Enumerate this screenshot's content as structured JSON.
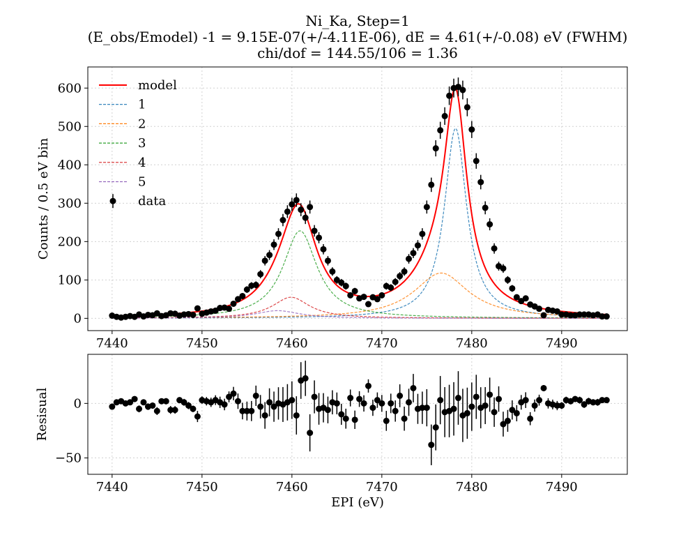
{
  "colors": {
    "model": "#ff0000",
    "c1": "#1f77b4",
    "c2": "#ff7f0e",
    "c3": "#2ca02c",
    "c4": "#d62728",
    "c5": "#9467bd",
    "data": "#000000",
    "grid": "#d0d0d0"
  },
  "chart_data": [
    {
      "type": "line",
      "role": "fit",
      "title_lines": [
        "Ni_Ka, Step=1",
        "(E_obs/Emodel) -1 = 9.15E-07(+/-4.11E-06), dE = 4.61(+/-0.08) eV (FWHM)",
        "chi/dof = 144.55/106 = 1.36"
      ],
      "xlabel": "",
      "ylabel": "Counts / 0.5 eV bin",
      "xlim": [
        7437.3,
        7497.3
      ],
      "ylim": [
        -32,
        655
      ],
      "xticks": [
        7440,
        7450,
        7460,
        7470,
        7480,
        7490
      ],
      "yticks": [
        0,
        100,
        200,
        300,
        400,
        500,
        600
      ],
      "legend_position": "top-left",
      "legend": [
        "model",
        "1",
        "2",
        "3",
        "4",
        "5",
        "data"
      ],
      "components": [
        {
          "name": "1",
          "shape": "lorentzian",
          "center": 7478.2,
          "amplitude": 495,
          "fwhm": 3.0
        },
        {
          "name": "2",
          "shape": "lorentzian",
          "center": 7476.6,
          "amplitude": 118,
          "fwhm": 7.4
        },
        {
          "name": "3",
          "shape": "lorentzian",
          "center": 7460.9,
          "amplitude": 228,
          "fwhm": 4.6
        },
        {
          "name": "4",
          "shape": "lorentzian",
          "center": 7459.9,
          "amplitude": 55,
          "fwhm": 5.0
        },
        {
          "name": "5",
          "shape": "lorentzian",
          "center": 7458.4,
          "amplitude": 20,
          "fwhm": 6.0
        }
      ],
      "data": {
        "x": [
          7440.0,
          7440.5,
          7441.0,
          7441.5,
          7442.0,
          7442.5,
          7443.0,
          7443.5,
          7444.0,
          7444.5,
          7445.0,
          7445.5,
          7446.0,
          7446.5,
          7447.0,
          7447.5,
          7448.0,
          7448.5,
          7449.0,
          7449.5,
          7450.0,
          7450.5,
          7451.0,
          7451.5,
          7452.0,
          7452.5,
          7453.0,
          7453.5,
          7454.0,
          7454.5,
          7455.0,
          7455.5,
          7456.0,
          7456.5,
          7457.0,
          7457.5,
          7458.0,
          7458.5,
          7459.0,
          7459.5,
          7460.0,
          7460.5,
          7461.0,
          7461.5,
          7462.0,
          7462.5,
          7463.0,
          7463.5,
          7464.0,
          7464.5,
          7465.0,
          7465.5,
          7466.0,
          7466.5,
          7467.0,
          7467.5,
          7468.0,
          7468.5,
          7469.0,
          7469.5,
          7470.0,
          7470.5,
          7471.0,
          7471.5,
          7472.0,
          7472.5,
          7473.0,
          7473.5,
          7474.0,
          7474.5,
          7475.0,
          7475.5,
          7476.0,
          7476.5,
          7477.0,
          7477.5,
          7478.0,
          7478.5,
          7479.0,
          7479.5,
          7480.0,
          7480.5,
          7481.0,
          7481.5,
          7482.0,
          7482.5,
          7483.0,
          7483.5,
          7484.0,
          7484.5,
          7485.0,
          7485.5,
          7486.0,
          7486.5,
          7487.0,
          7487.5,
          7488.0,
          7488.5,
          7489.0,
          7489.5,
          7490.0,
          7490.5,
          7491.0,
          7491.5,
          7492.0,
          7492.5,
          7493.0,
          7493.5,
          7494.0,
          7494.5,
          7495.0
        ],
        "y": [
          7,
          4,
          2,
          4,
          6,
          4,
          10,
          5,
          9,
          8,
          13,
          6,
          8,
          13,
          12,
          7,
          10,
          11,
          9,
          26,
          12,
          15,
          18,
          20,
          27,
          28,
          25,
          38,
          50,
          58,
          75,
          85,
          87,
          115,
          150,
          165,
          192,
          220,
          256,
          278,
          297,
          308,
          283,
          262,
          290,
          228,
          210,
          180,
          150,
          122,
          100,
          93,
          84,
          60,
          71,
          52,
          56,
          37,
          55,
          50,
          60,
          84,
          80,
          95,
          110,
          122,
          155,
          170,
          190,
          220,
          290,
          348,
          443,
          490,
          527,
          580,
          600,
          603,
          595,
          550,
          492,
          410,
          355,
          288,
          245,
          182,
          136,
          130,
          100,
          78,
          55,
          45,
          52,
          36,
          31,
          25,
          8,
          22,
          20,
          18,
          10,
          10,
          8,
          8,
          10,
          10,
          10,
          8,
          10,
          5,
          5
        ],
        "yerr_model": "sqrt"
      }
    },
    {
      "type": "scatter",
      "role": "residual",
      "xlabel": "EPI (eV)",
      "ylabel": "Resisual",
      "xlim": [
        7437.3,
        7497.3
      ],
      "ylim": [
        -65,
        45
      ],
      "xticks": [
        7440,
        7450,
        7460,
        7470,
        7480,
        7490
      ],
      "yticks": [
        0,
        -50
      ],
      "residual": [
        -3,
        1,
        2,
        0,
        1,
        4,
        -5,
        1,
        -3,
        -2,
        -7,
        2,
        2,
        -6,
        -6,
        3,
        1,
        -2,
        -5,
        -12,
        3,
        2,
        1,
        3,
        1,
        -1,
        6,
        9,
        2,
        -7,
        -7,
        -7,
        7,
        -3,
        -11,
        1,
        -3,
        0,
        -1,
        1,
        3,
        -11,
        21,
        23,
        -27,
        6,
        -5,
        -4,
        -6,
        1,
        0,
        -10,
        -14,
        5,
        -15,
        4,
        0,
        16,
        -4,
        3,
        0,
        -16,
        0,
        -7,
        7,
        -14,
        1,
        14,
        -5,
        -4,
        -4,
        -38,
        -22,
        3,
        -8,
        -7,
        -5,
        5,
        -11,
        -9,
        -3,
        6,
        -4,
        -2,
        8,
        -8,
        4,
        -19,
        -16,
        -6,
        -9,
        1,
        3,
        -14,
        -2,
        3,
        14,
        0,
        -1,
        -2,
        -2,
        3,
        2,
        4,
        3,
        -1,
        2,
        1,
        1,
        3,
        3
      ]
    }
  ]
}
